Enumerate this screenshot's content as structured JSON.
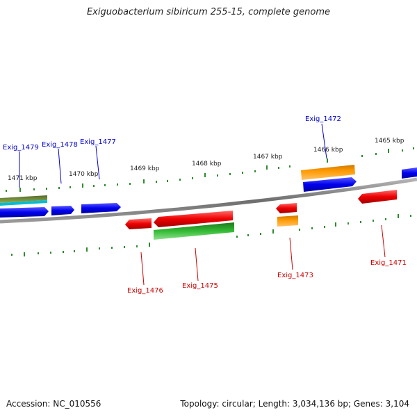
{
  "title": "Exiguobacterium sibiricum 255-15, complete genome",
  "footer": {
    "accession": "Accession: NC_010556",
    "summary": "Topology: circular; Length: 3,034,136 bp; Genes: 3,104"
  },
  "colors": {
    "backbone": "#8c8c8c",
    "tick": "#2e8b2e",
    "plus_label": "#0000cc",
    "minus_label": "#cc0000",
    "blue_gene": "#0000ee",
    "red_gene": "#ee0000",
    "orange_gene": "#ff9900",
    "green_gene": "#33bb33",
    "olive_gene": "#6b8e23",
    "cyan_gene": "#00bcd4"
  },
  "ticks": [
    {
      "label": "1471 kbp"
    },
    {
      "label": "1470 kbp"
    },
    {
      "label": "1469 kbp"
    },
    {
      "label": "1468 kbp"
    },
    {
      "label": "1467 kbp"
    },
    {
      "label": "1466 kbp"
    },
    {
      "label": "1465 kbp"
    }
  ],
  "gene_labels": {
    "plus": [
      "Exig_1479",
      "Exig_1478",
      "Exig_1477",
      "Exig_1472"
    ],
    "minus": [
      "Exig_1476",
      "Exig_1475",
      "Exig_1473",
      "Exig_1471"
    ]
  }
}
